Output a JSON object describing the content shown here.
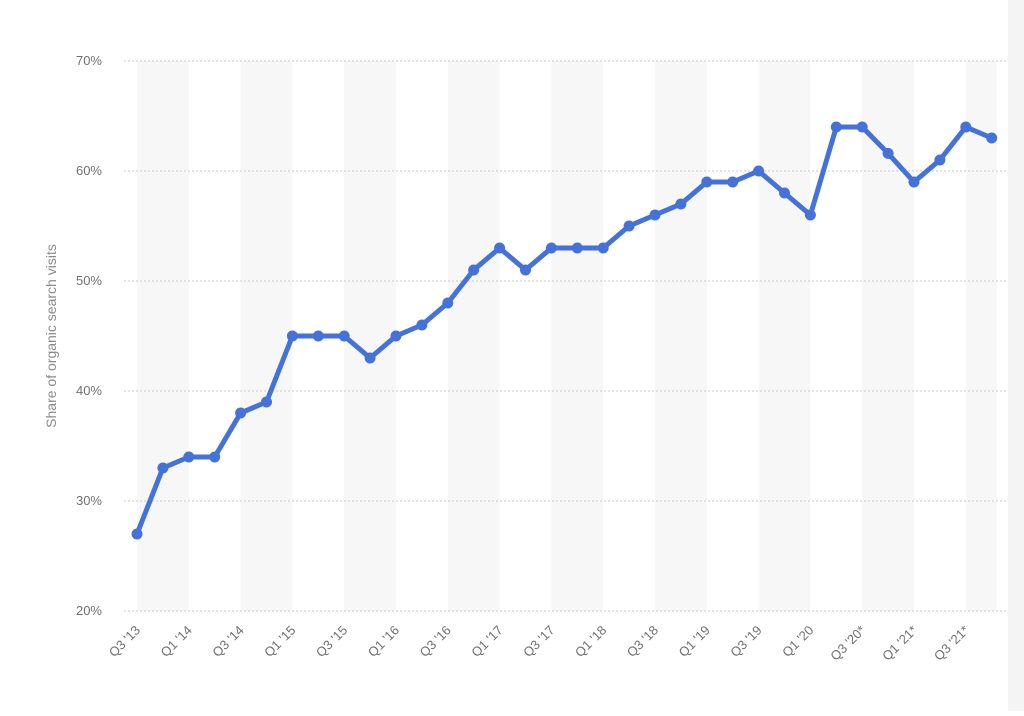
{
  "chart_data": {
    "type": "line",
    "title": "",
    "xlabel": "",
    "ylabel": "Share of organic search visits",
    "y_unit_suffix": "%",
    "ylim": [
      20,
      70
    ],
    "yticks": [
      20,
      30,
      40,
      50,
      60,
      70
    ],
    "grid": true,
    "legend": "none",
    "colors": {
      "line": "#4472d9",
      "band": "#f7f7f7",
      "grid": "#c8c8c8",
      "tick_text": "#707070",
      "axis_title": "#8a8a8a"
    },
    "categories": [
      "Q3 '13",
      "Q4 '13",
      "Q1 '14",
      "Q2 '14",
      "Q3 '14",
      "Q4 '14",
      "Q1 '15",
      "Q2 '15",
      "Q3 '15",
      "Q4 '15",
      "Q1 '16",
      "Q2 '16",
      "Q3 '16",
      "Q4 '16",
      "Q1 '17",
      "Q2 '17",
      "Q3 '17",
      "Q4 '17",
      "Q1 '18",
      "Q2 '18",
      "Q3 '18",
      "Q4 '18",
      "Q1 '19",
      "Q2 '19",
      "Q3 '19",
      "Q4 '19",
      "Q1 '20",
      "Q2 '20",
      "Q3 '20*",
      "Q4 '20*",
      "Q1 '21*",
      "Q2 '21*",
      "Q3 '21*",
      "Q4 '21*"
    ],
    "tick_labels": [
      "Q3 '13",
      "Q1 '14",
      "Q3 '14",
      "Q1 '15",
      "Q3 '15",
      "Q1 '16",
      "Q3 '16",
      "Q1 '17",
      "Q3 '17",
      "Q1 '18",
      "Q3 '18",
      "Q1 '19",
      "Q3 '19",
      "Q1 '20",
      "Q3 '20*",
      "Q1 '21*",
      "Q3 '21*"
    ],
    "series": [
      {
        "values": [
          27,
          33,
          34,
          34,
          38,
          39,
          45,
          45,
          45,
          43,
          45,
          46,
          48,
          51,
          53,
          51,
          53,
          53,
          53,
          55,
          56,
          57,
          59,
          59,
          60,
          58,
          56,
          64,
          64,
          61.6,
          59,
          61,
          64,
          63
        ]
      }
    ]
  }
}
